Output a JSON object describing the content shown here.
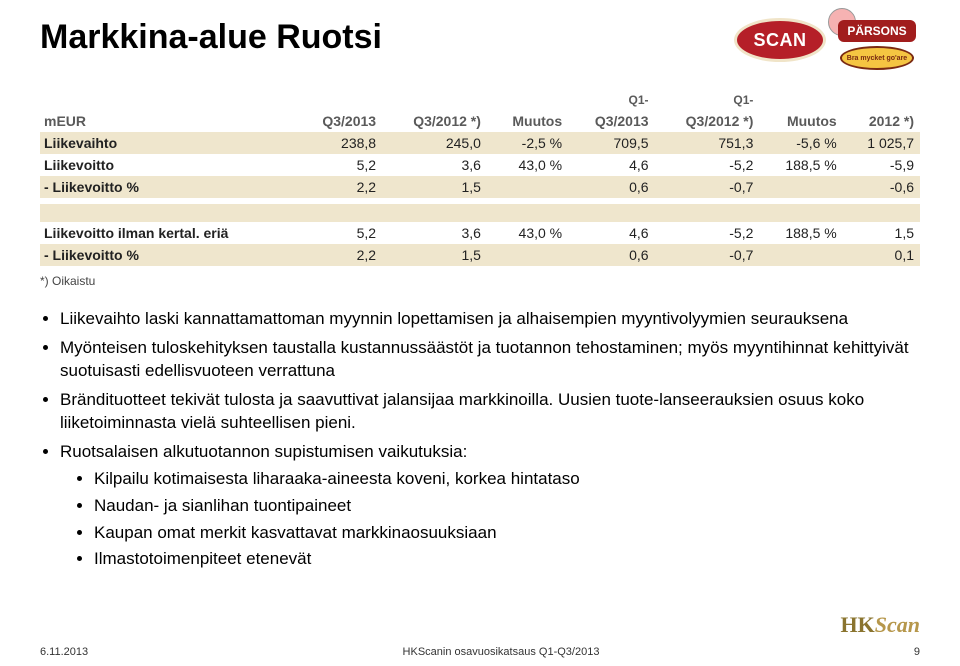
{
  "title": "Markkina-alue Ruotsi",
  "logo_scan_text": "SCAN",
  "logo_parsons_top": "PÄRSONS",
  "logo_parsons_bot": "Bra mycket go'are",
  "table": {
    "head_pre": [
      "",
      "",
      "",
      "",
      "Q1-",
      "Q1-",
      "",
      ""
    ],
    "headers": [
      "mEUR",
      "Q3/2013",
      "Q3/2012 *)",
      "Muutos",
      "Q3/2013",
      "Q3/2012 *)",
      "Muutos",
      "2012 *)"
    ],
    "rows": [
      {
        "cls": "row-beige",
        "cells": [
          "Liikevaihto",
          "238,8",
          "245,0",
          "-2,5 %",
          "709,5",
          "751,3",
          "-5,6 %",
          "1 025,7"
        ]
      },
      {
        "cls": "row-white",
        "cells": [
          "Liikevoitto",
          "5,2",
          "3,6",
          "43,0 %",
          "4,6",
          "-5,2",
          "188,5 %",
          "-5,9"
        ]
      },
      {
        "cls": "row-beige",
        "cells": [
          "- Liikevoitto %",
          "2,2",
          "1,5",
          "",
          "0,6",
          "-0,7",
          "",
          "-0,6"
        ]
      }
    ],
    "rows2": [
      {
        "cls": "row-white",
        "cells": [
          "Liikevoitto ilman kertal. eriä",
          "5,2",
          "3,6",
          "43,0 %",
          "4,6",
          "-5,2",
          "188,5 %",
          "1,5"
        ]
      },
      {
        "cls": "row-beige",
        "cells": [
          "- Liikevoitto %",
          "2,2",
          "1,5",
          "",
          "0,6",
          "-0,7",
          "",
          "0,1"
        ]
      }
    ]
  },
  "footnote": "*) Oikaistu",
  "bullets": [
    "Liikevaihto laski kannattamattoman myynnin lopettamisen ja alhaisempien myyntivolyymien seurauksena",
    "Myönteisen tuloskehityksen taustalla kustannussäästöt ja tuotannon tehostaminen; myös myyntihinnat kehittyivät suotuisasti edellisvuoteen verrattuna",
    "Brändituotteet tekivät tulosta ja saavuttivat jalansijaa markkinoilla. Uusien tuote-lanseerauksien osuus koko liiketoiminnasta vielä suhteellisen pieni.",
    "Ruotsalaisen alkutuotannon supistumisen vaikutuksia:"
  ],
  "sub_bullets": [
    "Kilpailu kotimaisesta liharaaka-aineesta koveni, korkea hintataso",
    "Naudan- ja sianlihan tuontipaineet",
    "Kaupan omat merkit kasvattavat markkinaosuuksiaan",
    "Ilmastotoimenpiteet etenevät"
  ],
  "footer_date": "6.11.2013",
  "footer_source": "HKScanin osavuosikatsaus Q1-Q3/2013",
  "footer_page": "9",
  "colors": {
    "beige": "#efe6cd",
    "header_text": "#5a5a5a",
    "scan_bg": "#b51f28",
    "gold": "#a58a3a"
  }
}
